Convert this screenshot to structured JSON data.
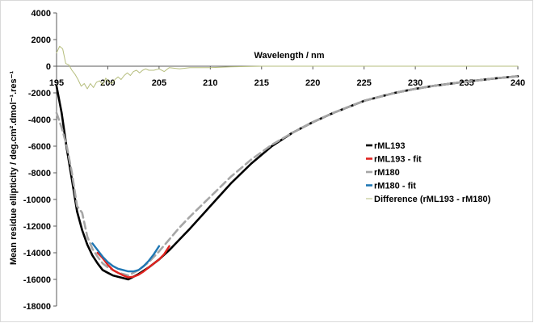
{
  "chart_data": {
    "type": "line",
    "title": "",
    "xlabel": "Wavelength / nm",
    "ylabel": "Mean residue ellipticity / deg.cm².dmol⁻¹.res⁻¹",
    "xlim": [
      195,
      240
    ],
    "ylim": [
      -18000,
      4000
    ],
    "x_ticks": [
      195,
      200,
      205,
      210,
      215,
      220,
      225,
      230,
      235,
      240
    ],
    "y_ticks": [
      4000,
      2000,
      0,
      -2000,
      -4000,
      -6000,
      -8000,
      -10000,
      -12000,
      -14000,
      -16000,
      -18000
    ],
    "grid": false,
    "legend_position": "right",
    "series": [
      {
        "name": "rML193",
        "color": "#000000",
        "style": "solid",
        "x": [
          195,
          195.5,
          196,
          196.5,
          197,
          197.5,
          198,
          198.5,
          199,
          199.5,
          200,
          200.5,
          201,
          201.5,
          202,
          202.5,
          203,
          204,
          205,
          206,
          207,
          208,
          210,
          212,
          214,
          216,
          218,
          220,
          222,
          225,
          228,
          230,
          232,
          235,
          238,
          240
        ],
        "y": [
          -1500,
          -3500,
          -6200,
          -8500,
          -10900,
          -12300,
          -13400,
          -14200,
          -14800,
          -15300,
          -15500,
          -15700,
          -15800,
          -15900,
          -16000,
          -15800,
          -15600,
          -15100,
          -14500,
          -13800,
          -13000,
          -12200,
          -10500,
          -8800,
          -7300,
          -6000,
          -5000,
          -4200,
          -3500,
          -2600,
          -2000,
          -1700,
          -1450,
          -1150,
          -900,
          -750
        ]
      },
      {
        "name": "rML193 - fit",
        "color": "#e0231f",
        "style": "solid",
        "x": [
          199,
          199.5,
          200,
          200.5,
          201,
          201.5,
          202,
          202.5,
          203,
          203.5,
          204,
          204.5,
          205,
          205.5,
          206
        ],
        "y": [
          -14000,
          -14400,
          -14900,
          -15300,
          -15500,
          -15700,
          -15850,
          -15800,
          -15650,
          -15400,
          -15100,
          -14800,
          -14500,
          -14100,
          -13500
        ]
      },
      {
        "name": "rM180",
        "color": "#a6a6a6",
        "style": "dashed",
        "x": [
          195,
          195.5,
          196,
          196.5,
          197,
          197.5,
          198,
          198.5,
          199,
          199.5,
          200,
          200.5,
          201,
          201.5,
          202,
          202.5,
          203,
          204,
          205,
          206,
          207,
          208,
          210,
          212,
          214,
          216,
          218,
          220,
          222,
          225,
          228,
          230,
          232,
          235,
          238,
          240
        ],
        "y": [
          -3500,
          -4600,
          -6000,
          -8000,
          -10500,
          -11000,
          -12800,
          -13700,
          -14300,
          -14800,
          -15100,
          -15300,
          -15500,
          -15600,
          -15700,
          -15500,
          -15300,
          -14700,
          -13900,
          -13000,
          -12100,
          -11300,
          -9800,
          -8300,
          -7000,
          -5900,
          -5000,
          -4200,
          -3500,
          -2600,
          -2000,
          -1700,
          -1450,
          -1150,
          -900,
          -750
        ]
      },
      {
        "name": "rM180 - fit",
        "color": "#1f77b4",
        "style": "solid",
        "x": [
          198.5,
          199,
          199.5,
          200,
          200.5,
          201,
          201.5,
          202,
          202.5,
          203,
          203.5,
          204,
          204.5,
          205
        ],
        "y": [
          -13300,
          -13800,
          -14300,
          -14700,
          -15000,
          -15200,
          -15300,
          -15400,
          -15400,
          -15300,
          -15000,
          -14600,
          -14100,
          -13500
        ]
      },
      {
        "name": "Difference (rML193 - rM180)",
        "color": "#b5bd7c",
        "style": "solid",
        "x": [
          195,
          195.3,
          195.6,
          195.9,
          196.2,
          196.5,
          196.8,
          197.1,
          197.4,
          197.7,
          198,
          198.3,
          198.6,
          198.9,
          199.2,
          199.5,
          199.8,
          200.1,
          200.4,
          200.7,
          201,
          201.3,
          201.6,
          201.9,
          202.2,
          202.5,
          202.8,
          203.1,
          203.4,
          203.7,
          204,
          204.5,
          205,
          205.5,
          206,
          207,
          208,
          210,
          212,
          215,
          220,
          225,
          230,
          235,
          240
        ],
        "y": [
          1000,
          1500,
          1300,
          200,
          100,
          -300,
          -600,
          -1000,
          -1500,
          -1300,
          -1700,
          -1300,
          -1600,
          -1200,
          -1100,
          -1400,
          -900,
          -1200,
          -1300,
          -1000,
          -800,
          -1000,
          -700,
          -500,
          -700,
          -400,
          -300,
          -500,
          -300,
          -200,
          -300,
          -300,
          -200,
          -400,
          -100,
          -200,
          -100,
          -100,
          -50,
          0,
          0,
          0,
          0,
          0,
          0
        ]
      }
    ]
  }
}
